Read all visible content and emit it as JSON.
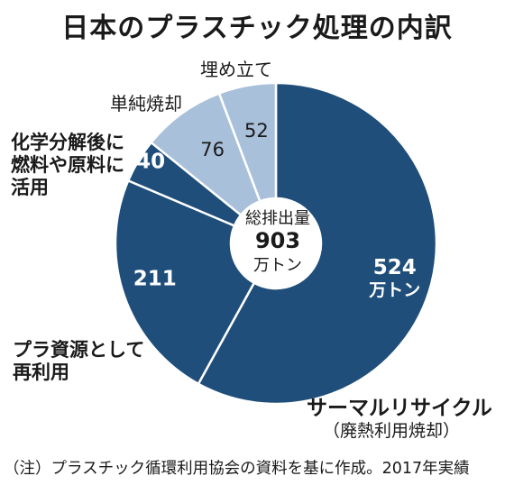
{
  "title": "日本のプラスチック処理の内訳",
  "center": {
    "line1": "総排出量",
    "value": "903",
    "unit": "万トン"
  },
  "labels": {
    "thermal_main": "サーマルリサイクル",
    "thermal_sub": "（廃熱利用焼却）",
    "material_l1": "プラ資源として",
    "material_l2": "再利用",
    "chemical_l1": "化学分解後に",
    "chemical_l2": "燃料や原料に",
    "chemical_l3": "活用",
    "incineration": "単純焼却",
    "landfill": "埋め立て"
  },
  "value_labels": {
    "thermal": "524",
    "thermal_unit": "万トン",
    "material": "211",
    "chemical": "40",
    "incineration": "76",
    "landfill": "52"
  },
  "note": "（注）プラスチック循環利用協会の資料を基に作成。2017年実績",
  "colors": {
    "dark": "#1f4e7a",
    "light": "#a9c0db",
    "edge": "#ffffff"
  },
  "chart_data": {
    "type": "pie",
    "title": "日本のプラスチック処理の内訳",
    "total": 903,
    "unit": "万トン",
    "categories": [
      "サーマルリサイクル（廃熱利用焼却）",
      "プラ資源として再利用",
      "化学分解後に燃料や原料に活用",
      "単純焼却",
      "埋め立て"
    ],
    "values": [
      524,
      211,
      40,
      76,
      52
    ],
    "slice_colors": [
      "#1f4e7a",
      "#1f4e7a",
      "#1f4e7a",
      "#a9c0db",
      "#a9c0db"
    ],
    "donut": true
  }
}
